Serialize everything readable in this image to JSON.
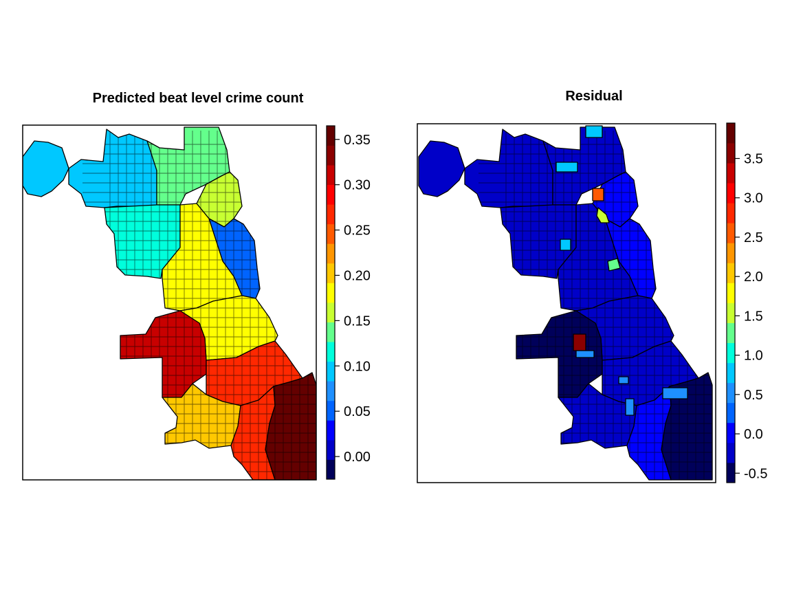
{
  "panels": [
    {
      "title": "Predicted beat level crime count",
      "legend_ticks": [
        "0.35",
        "0.30",
        "0.25",
        "0.20",
        "0.15",
        "0.10",
        "0.05",
        "0.00"
      ],
      "legend_range": [
        -0.025,
        0.365
      ],
      "colors": [
        "#00005a",
        "#0000c8",
        "#0000ff",
        "#0064ff",
        "#1e90ff",
        "#00c8ff",
        "#00ffdc",
        "#64ff8c",
        "#c8ff32",
        "#ffff00",
        "#ffc800",
        "#ff9600",
        "#ff5a00",
        "#ff2800",
        "#ff0000",
        "#c80000",
        "#8b0000",
        "#640000"
      ],
      "regions": [
        {
          "area": "far-northwest",
          "level": 5
        },
        {
          "area": "ohare-inner",
          "level": 0
        },
        {
          "area": "northwest",
          "level": 5
        },
        {
          "area": "north-central",
          "level": 7
        },
        {
          "area": "northeast-lakefront",
          "level": 8
        },
        {
          "area": "north-lakefront",
          "level": 3
        },
        {
          "area": "central-west",
          "level": 6
        },
        {
          "area": "downtown-west",
          "level": 9
        },
        {
          "area": "near-south",
          "level": 9
        },
        {
          "area": "southwest-airport",
          "level": 15
        },
        {
          "area": "south-central",
          "level": 13
        },
        {
          "area": "far-southwest",
          "level": 10
        },
        {
          "area": "far-south",
          "level": 13
        },
        {
          "area": "southeast",
          "level": 17
        }
      ]
    },
    {
      "title": "Residual",
      "legend_ticks": [
        "3.5",
        "3.0",
        "2.5",
        "2.0",
        "1.5",
        "1.0",
        "0.5",
        "0.0",
        "-0.5"
      ],
      "legend_range": [
        -0.62,
        3.95
      ],
      "colors": [
        "#00005a",
        "#0000c8",
        "#0000ff",
        "#0064ff",
        "#1e90ff",
        "#00c8ff",
        "#00ffdc",
        "#64ff8c",
        "#c8ff32",
        "#ffff00",
        "#ffc800",
        "#ff9600",
        "#ff5a00",
        "#ff2800",
        "#ff0000",
        "#c80000",
        "#8b0000",
        "#640000"
      ],
      "regions": [
        {
          "area": "far-northwest",
          "level": 1
        },
        {
          "area": "ohare-inner",
          "level": 2
        },
        {
          "area": "northwest",
          "level": 1
        },
        {
          "area": "north-central",
          "level": 1
        },
        {
          "area": "northeast-lakefront",
          "level": 2
        },
        {
          "area": "north-lakefront",
          "level": 2
        },
        {
          "area": "central-west",
          "level": 1
        },
        {
          "area": "downtown-west",
          "level": 1
        },
        {
          "area": "near-south",
          "level": 1
        },
        {
          "area": "southwest-airport",
          "level": 0
        },
        {
          "area": "south-central",
          "level": 1
        },
        {
          "area": "far-southwest",
          "level": 1
        },
        {
          "area": "far-south",
          "level": 2
        },
        {
          "area": "southeast",
          "level": 0
        }
      ],
      "highlights": [
        {
          "area": "hot-beat-south",
          "level": 16
        },
        {
          "area": "hot-beat-north",
          "level": 12
        },
        {
          "area": "green-beat-north",
          "level": 8
        },
        {
          "area": "green-beat-central",
          "level": 7
        },
        {
          "area": "cyan-beat-1",
          "level": 5
        },
        {
          "area": "cyan-beat-2",
          "level": 5
        },
        {
          "area": "cyan-beat-3",
          "level": 5
        },
        {
          "area": "light-blue-beat-1",
          "level": 4
        },
        {
          "area": "light-blue-beat-2",
          "level": 4
        },
        {
          "area": "light-blue-beat-3",
          "level": 4
        },
        {
          "area": "light-blue-beat-4",
          "level": 4
        }
      ]
    }
  ]
}
